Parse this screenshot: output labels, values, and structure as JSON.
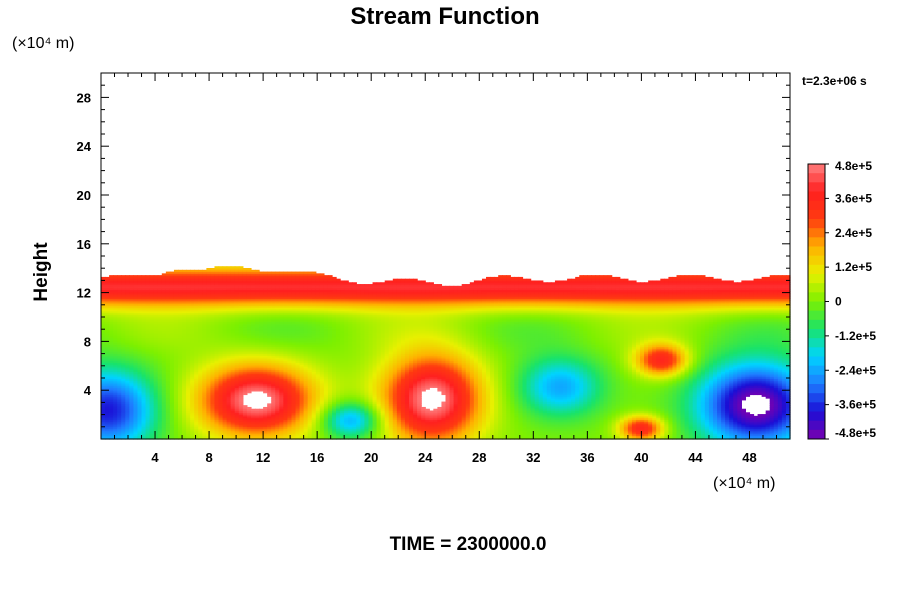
{
  "title": "Stream Function",
  "time_label": "t=2.3e+06 s",
  "footer": "TIME = 2300000.0",
  "x_unit": "(×10⁴ m)",
  "y_unit": "(×10⁴ m)",
  "colors": {
    "palette": [
      "#7a00b0",
      "#1a0fd6",
      "#1e7cff",
      "#00d4ff",
      "#19e36a",
      "#7df000",
      "#e8f000",
      "#ffb000",
      "#ff3a10",
      "#ff2020",
      "#ff8080"
    ]
  },
  "chart_data": {
    "type": "heatmap",
    "title": "Stream Function",
    "xlabel": "",
    "ylabel": "Height",
    "xlim": [
      0,
      51
    ],
    "ylim": [
      0,
      30
    ],
    "x_ticks": [
      4,
      8,
      12,
      16,
      20,
      24,
      28,
      32,
      36,
      40,
      44,
      48
    ],
    "y_ticks": [
      4,
      8,
      12,
      16,
      20,
      24,
      28
    ],
    "colorbar": {
      "range": [
        -480000,
        480000
      ],
      "tick_values": [
        480000,
        360000,
        240000,
        120000,
        0,
        -120000,
        -240000,
        -360000,
        -480000
      ],
      "tick_labels": [
        "4.8e+5",
        "3.6e+5",
        "2.4e+5",
        "1.2e+5",
        "0",
        "-1.2e+5",
        "-2.4e+5",
        "-3.6e+5",
        "-4.8e+5"
      ]
    },
    "features": [
      {
        "kind": "positive band",
        "x_range": [
          0,
          51
        ],
        "y_center": 12.5,
        "peak": 400000
      },
      {
        "kind": "cell max",
        "x": 11.5,
        "y": 3.2,
        "peak": 500000
      },
      {
        "kind": "cell max",
        "x": 24.5,
        "y": 3.3,
        "peak": 500000
      },
      {
        "kind": "cell max",
        "x": 41.5,
        "y": 6.5,
        "peak": 360000
      },
      {
        "kind": "cell max",
        "x": 40.0,
        "y": 0.9,
        "peak": 360000
      },
      {
        "kind": "cell min",
        "x": 48.5,
        "y": 2.8,
        "peak": -500000
      },
      {
        "kind": "cell min",
        "x": 34.0,
        "y": 4.3,
        "peak": -240000
      },
      {
        "kind": "cell min",
        "x": 18.5,
        "y": 1.6,
        "peak": -260000
      },
      {
        "kind": "cell min",
        "x": 0.5,
        "y": 2.4,
        "peak": -380000
      }
    ]
  }
}
